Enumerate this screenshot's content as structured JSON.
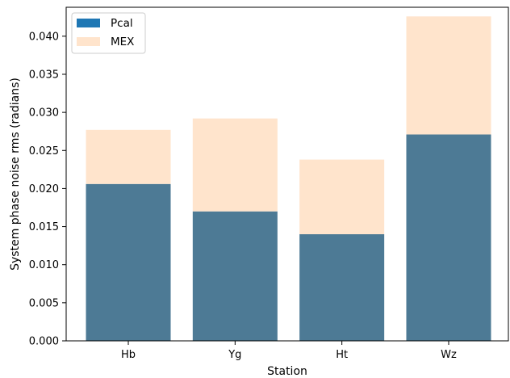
{
  "chart_data": {
    "type": "bar",
    "stacked": true,
    "categories": [
      "Hb",
      "Yg",
      "Ht",
      "Wz"
    ],
    "series": [
      {
        "name": "Pcal",
        "values": [
          0.0206,
          0.017,
          0.014,
          0.0271
        ]
      },
      {
        "name": "MEX",
        "values": [
          0.0071,
          0.0122,
          0.0098,
          0.0155
        ]
      }
    ],
    "series_colors": {
      "Pcal_bar": "#4d7a95",
      "Pcal_legend": "#1f77b4",
      "MEX": "#ffe4cc"
    },
    "xlabel": "Station",
    "ylabel": "System phase noise rms (radians)",
    "ylim": [
      0,
      0.0438
    ],
    "yticks": [
      "0.000",
      "0.005",
      "0.010",
      "0.015",
      "0.020",
      "0.025",
      "0.030",
      "0.035",
      "0.040"
    ],
    "grid": false,
    "legend_position": "top-left"
  }
}
